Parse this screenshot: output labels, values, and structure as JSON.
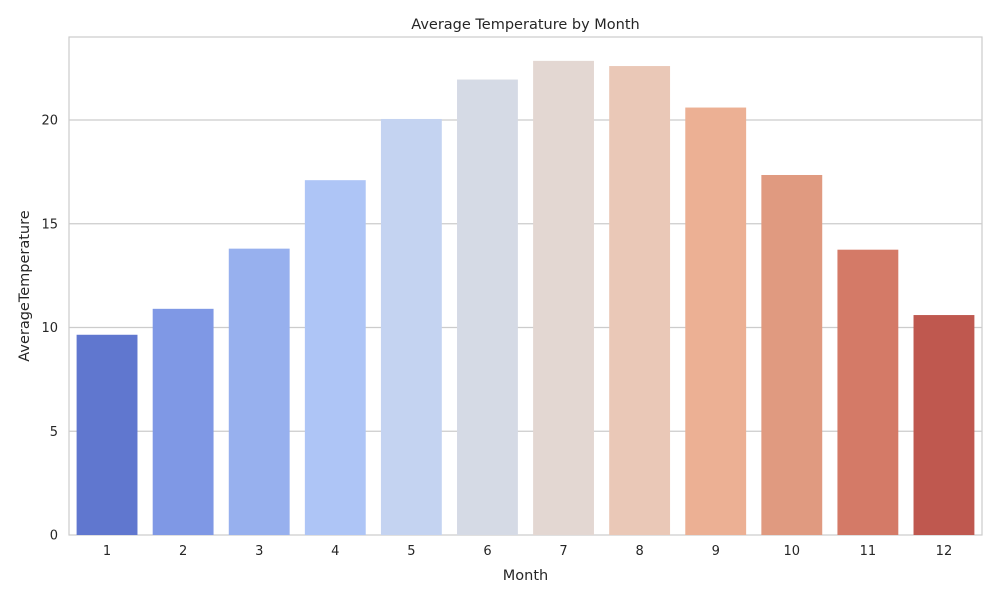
{
  "chart_data": {
    "type": "bar",
    "title": "Average Temperature by Month",
    "xlabel": "Month",
    "ylabel": "AverageTemperature",
    "categories": [
      "1",
      "2",
      "3",
      "4",
      "5",
      "6",
      "7",
      "8",
      "9",
      "10",
      "11",
      "12"
    ],
    "values": [
      9.65,
      10.9,
      13.8,
      17.1,
      20.05,
      21.95,
      22.85,
      22.6,
      20.6,
      17.35,
      13.75,
      10.6
    ],
    "colors": [
      "#6077cf",
      "#7f98e5",
      "#97b0ee",
      "#aec5f6",
      "#c4d3f1",
      "#d5dae5",
      "#e3d7d2",
      "#eac8b7",
      "#ecb094",
      "#e09a80",
      "#d47a67",
      "#bf584f"
    ],
    "ylim": [
      0,
      24
    ],
    "yticks": [
      0,
      5,
      10,
      15,
      20
    ],
    "grid": "horizontal",
    "legend": "none"
  }
}
